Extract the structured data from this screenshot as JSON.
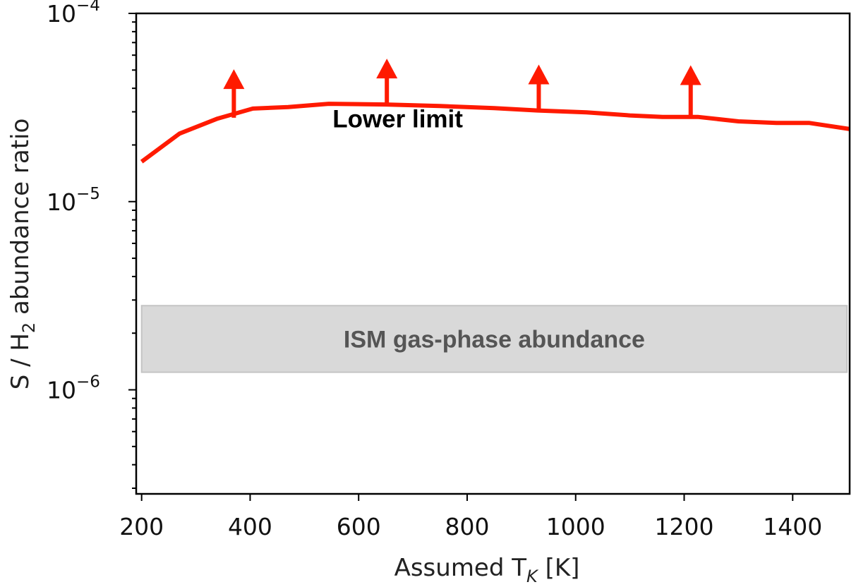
{
  "chart_data": {
    "type": "line",
    "title": "",
    "xlabel": "Assumed T",
    "xlabel_sub": "K",
    "xlabel_unit": " [K]",
    "ylabel_pre": "S / H",
    "ylabel_sub": "2",
    "ylabel_post": " abundance ratio",
    "yscale": "log",
    "xlim": [
      190,
      1505
    ],
    "ylim": [
      2.8e-07,
      0.0001
    ],
    "x_ticks": [
      {
        "value": 200,
        "label": "200"
      },
      {
        "value": 400,
        "label": "400"
      },
      {
        "value": 600,
        "label": "600"
      },
      {
        "value": 800,
        "label": "800"
      },
      {
        "value": 1000,
        "label": "1000"
      },
      {
        "value": 1200,
        "label": "1200"
      },
      {
        "value": 1400,
        "label": "1400"
      }
    ],
    "y_major_ticks": [
      {
        "value": 0.0001,
        "base": "10",
        "exp": "−4"
      },
      {
        "value": 1e-05,
        "base": "10",
        "exp": "−5"
      },
      {
        "value": 1e-06,
        "base": "10",
        "exp": "−6"
      }
    ],
    "series": [
      {
        "name": "Lower limit",
        "color": "#ff1a00",
        "x": [
          200,
          270,
          340,
          405,
          470,
          545,
          650,
          750,
          850,
          930,
          1020,
          1100,
          1160,
          1225,
          1300,
          1370,
          1430,
          1505
        ],
        "y": [
          1.63e-05,
          2.3e-05,
          2.76e-05,
          3.12e-05,
          3.18e-05,
          3.31e-05,
          3.28e-05,
          3.22e-05,
          3.14e-05,
          3.05e-05,
          2.98e-05,
          2.87e-05,
          2.82e-05,
          2.82e-05,
          2.67e-05,
          2.62e-05,
          2.62e-05,
          2.43e-05
        ]
      }
    ],
    "lower_limit_arrows": [
      {
        "x": 370,
        "y_from": 2.79e-05,
        "y_to": 5.05e-05
      },
      {
        "x": 652,
        "y_from": 3.28e-05,
        "y_to": 5.75e-05
      },
      {
        "x": 932,
        "y_from": 3.05e-05,
        "y_to": 5.35e-05
      },
      {
        "x": 1212,
        "y_from": 2.82e-05,
        "y_to": 5.3e-05
      }
    ],
    "band": {
      "label": "ISM gas-phase abundance",
      "x_range": [
        200,
        1500
      ],
      "y_range": [
        1.24e-06,
        2.8e-06
      ],
      "color": "#d9d9d9"
    },
    "annotations": [
      {
        "text": "Lower limit",
        "x": 672,
        "y": 2.48e-05
      }
    ]
  }
}
